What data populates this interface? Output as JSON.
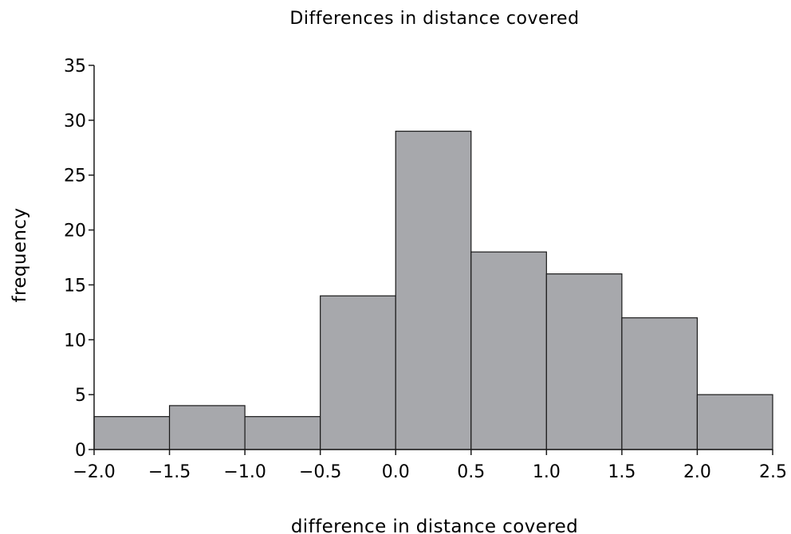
{
  "chart_data": {
    "type": "bar",
    "title": "Differences in distance covered",
    "xlabel": "difference in distance covered",
    "ylabel": "frequency",
    "bins": [
      {
        "x0": -2.0,
        "x1": -1.5,
        "value": 3
      },
      {
        "x0": -1.5,
        "x1": -1.0,
        "value": 4
      },
      {
        "x0": -1.0,
        "x1": -0.5,
        "value": 3
      },
      {
        "x0": -0.5,
        "x1": 0.0,
        "value": 14
      },
      {
        "x0": 0.0,
        "x1": 0.5,
        "value": 29
      },
      {
        "x0": 0.5,
        "x1": 1.0,
        "value": 18
      },
      {
        "x0": 1.0,
        "x1": 1.5,
        "value": 16
      },
      {
        "x0": 1.5,
        "x1": 2.0,
        "value": 12
      },
      {
        "x0": 2.0,
        "x1": 2.5,
        "value": 5
      }
    ],
    "xlim": [
      -2.0,
      2.5
    ],
    "ylim": [
      0,
      35
    ],
    "x_ticks": [
      "−2.0",
      "−1.5",
      "−1.0",
      "−0.5",
      "0.0",
      "0.5",
      "1.0",
      "1.5",
      "2.0",
      "2.5"
    ],
    "y_ticks": [
      "0",
      "5",
      "10",
      "15",
      "20",
      "25",
      "30",
      "35"
    ],
    "grid": false,
    "bar_color": "#a7a8ac",
    "edge_color": "#1a1a1a"
  }
}
